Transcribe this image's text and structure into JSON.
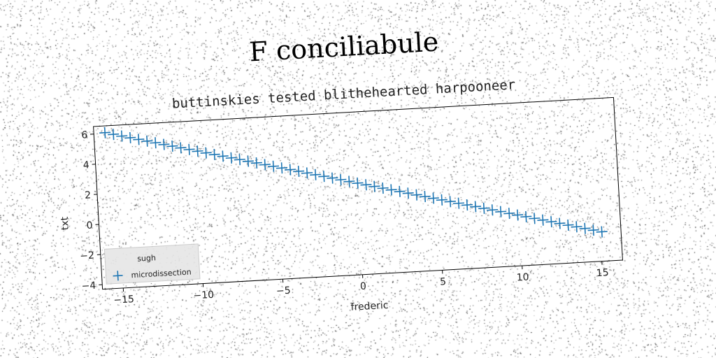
{
  "chart_data": {
    "type": "scatter",
    "title": "F conciliabule",
    "subtitle": "buttinskies tested blithehearted harpooneer",
    "xlabel": "frederic",
    "ylabel": "txt",
    "xlim": [
      -16.3,
      16.3
    ],
    "ylim": [
      -4.3,
      6.5
    ],
    "xticks": [
      -15,
      -10,
      -5,
      0,
      5,
      10,
      15
    ],
    "yticks": [
      -4,
      -2,
      0,
      2,
      4,
      6
    ],
    "grid": false,
    "legend_position": "lower-left",
    "series": [
      {
        "name": "sugh",
        "marker": "point",
        "color": "#1f77b4",
        "visible": false,
        "x": [],
        "y": []
      },
      {
        "name": "microdissection",
        "marker": "plus",
        "color": "#1f77b4",
        "x_start": -15.6,
        "x_end": 15.1,
        "count": 60,
        "y_start": 6.05,
        "y_end": -2.35
      }
    ]
  }
}
